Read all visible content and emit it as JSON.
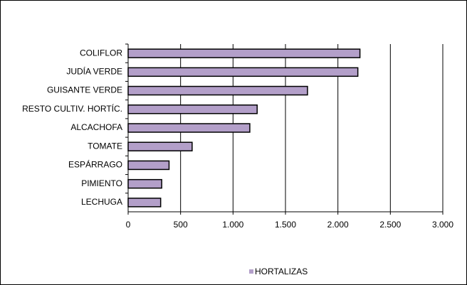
{
  "chart_data": {
    "type": "bar",
    "orientation": "horizontal",
    "categories": [
      "COLIFLOR",
      "JUDÍA VERDE",
      "GUISANTE VERDE",
      "RESTO CULTIV. HORTÍC.",
      "ALCACHOFA",
      "TOMATE",
      "ESPÁRRAGO",
      "PIMIENTO",
      "LECHUGA"
    ],
    "series": [
      {
        "name": "HORTALIZAS",
        "color": "#b39fc9",
        "values": [
          2210,
          2190,
          1710,
          1230,
          1160,
          610,
          390,
          320,
          310
        ]
      }
    ],
    "xlim": [
      0,
      3000
    ],
    "xticks": [
      0,
      500,
      {
        "value": 1000,
        "label": "1.000"
      },
      {
        "value": 1500,
        "label": "1.500"
      },
      {
        "value": 2000,
        "label": "2.000"
      },
      {
        "value": 2500,
        "label": "2.500"
      },
      {
        "value": 3000,
        "label": "3.000"
      }
    ],
    "grid": true,
    "legend": "bottom"
  }
}
